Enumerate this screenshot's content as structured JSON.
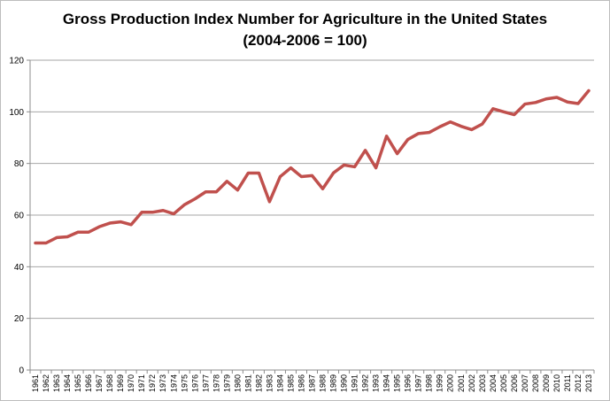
{
  "chart_data": {
    "type": "line",
    "title": "Gross Production Index Number for Agriculture in the United States",
    "subtitle": "(2004-2006 = 100)",
    "xlabel": "",
    "ylabel": "",
    "ylim": [
      0,
      120
    ],
    "yticks": [
      0,
      20,
      40,
      60,
      80,
      100,
      120
    ],
    "grid": true,
    "legend": "none",
    "line_color": "#c0504d",
    "categories": [
      "1961",
      "1962",
      "1963",
      "1964",
      "1965",
      "1966",
      "1967",
      "1968",
      "1969",
      "1970",
      "1971",
      "1972",
      "1973",
      "1974",
      "1975",
      "1976",
      "1977",
      "1978",
      "1979",
      "1980",
      "1981",
      "1982",
      "1983",
      "1984",
      "1985",
      "1986",
      "1987",
      "1988",
      "1989",
      "1990",
      "1991",
      "1992",
      "1993",
      "1994",
      "1995",
      "1996",
      "1997",
      "1998",
      "1999",
      "2000",
      "2001",
      "2002",
      "2003",
      "2004",
      "2005",
      "2006",
      "2007",
      "2008",
      "2009",
      "2010",
      "2011",
      "2012",
      "2013"
    ],
    "series": [
      {
        "values": [
          49.2,
          49.2,
          51.3,
          51.6,
          53.4,
          53.4,
          55.5,
          56.9,
          57.4,
          56.3,
          61.1,
          61.1,
          61.8,
          60.5,
          64.0,
          66.3,
          69.0,
          69.0,
          73.1,
          69.7,
          76.3,
          76.3,
          65.2,
          74.9,
          78.3,
          74.9,
          75.3,
          70.2,
          76.3,
          79.4,
          78.7,
          85.1,
          78.3,
          90.6,
          83.8,
          89.3,
          91.6,
          92.0,
          94.2,
          96.1,
          94.4,
          93.1,
          95.3,
          101.2,
          100.0,
          98.9,
          103.0,
          103.6,
          105.0,
          105.6,
          103.8,
          103.2,
          108.2
        ]
      }
    ]
  }
}
